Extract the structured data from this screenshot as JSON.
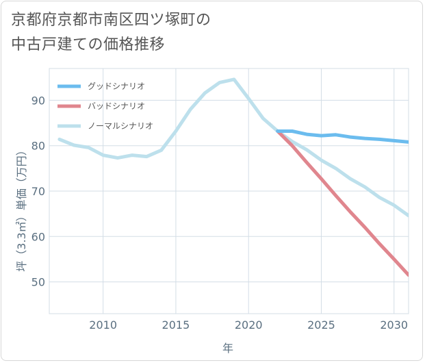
{
  "title": {
    "line1": "京都府京都市南区四ツ塚町の",
    "line2": "中古戸建ての価格推移"
  },
  "chart_data": {
    "type": "line",
    "xlabel": "年",
    "ylabel": "坪（3.3㎡）単価（万円）",
    "xlim": [
      2006.3,
      2031
    ],
    "ylim": [
      43,
      97
    ],
    "x_ticks": [
      2010,
      2015,
      2020,
      2025,
      2030
    ],
    "y_ticks": [
      50,
      60,
      70,
      80,
      90
    ],
    "grid": true,
    "legend_position": "top-left",
    "series": [
      {
        "name": "グッドシナリオ",
        "color": "#6bbcee",
        "x": [
          2022,
          2023,
          2024,
          2025,
          2026,
          2027,
          2028,
          2029,
          2030,
          2031
        ],
        "y": [
          83.2,
          83.2,
          82.5,
          82.2,
          82.4,
          81.9,
          81.6,
          81.4,
          81.1,
          80.8
        ]
      },
      {
        "name": "バッドシナリオ",
        "color": "#e0868e",
        "x": [
          2022,
          2023,
          2024,
          2025,
          2026,
          2027,
          2028,
          2029,
          2030,
          2031
        ],
        "y": [
          83.2,
          80.0,
          76.3,
          72.7,
          69.0,
          65.4,
          62.0,
          58.4,
          55.0,
          51.5
        ]
      },
      {
        "name": "ノーマルシナリオ",
        "color": "#bde0ec",
        "x": [
          2007,
          2008,
          2009,
          2010,
          2011,
          2012,
          2013,
          2014,
          2015,
          2016,
          2017,
          2018,
          2019,
          2020,
          2021,
          2022,
          2023,
          2024,
          2025,
          2026,
          2027,
          2028,
          2029,
          2030,
          2031
        ],
        "y": [
          81.4,
          80.1,
          79.6,
          77.9,
          77.3,
          77.9,
          77.6,
          79.0,
          83.2,
          88.0,
          91.6,
          93.9,
          94.6,
          90.4,
          86.0,
          83.2,
          80.9,
          79.1,
          76.8,
          75.0,
          72.7,
          70.9,
          68.6,
          66.9,
          64.6
        ]
      }
    ]
  }
}
